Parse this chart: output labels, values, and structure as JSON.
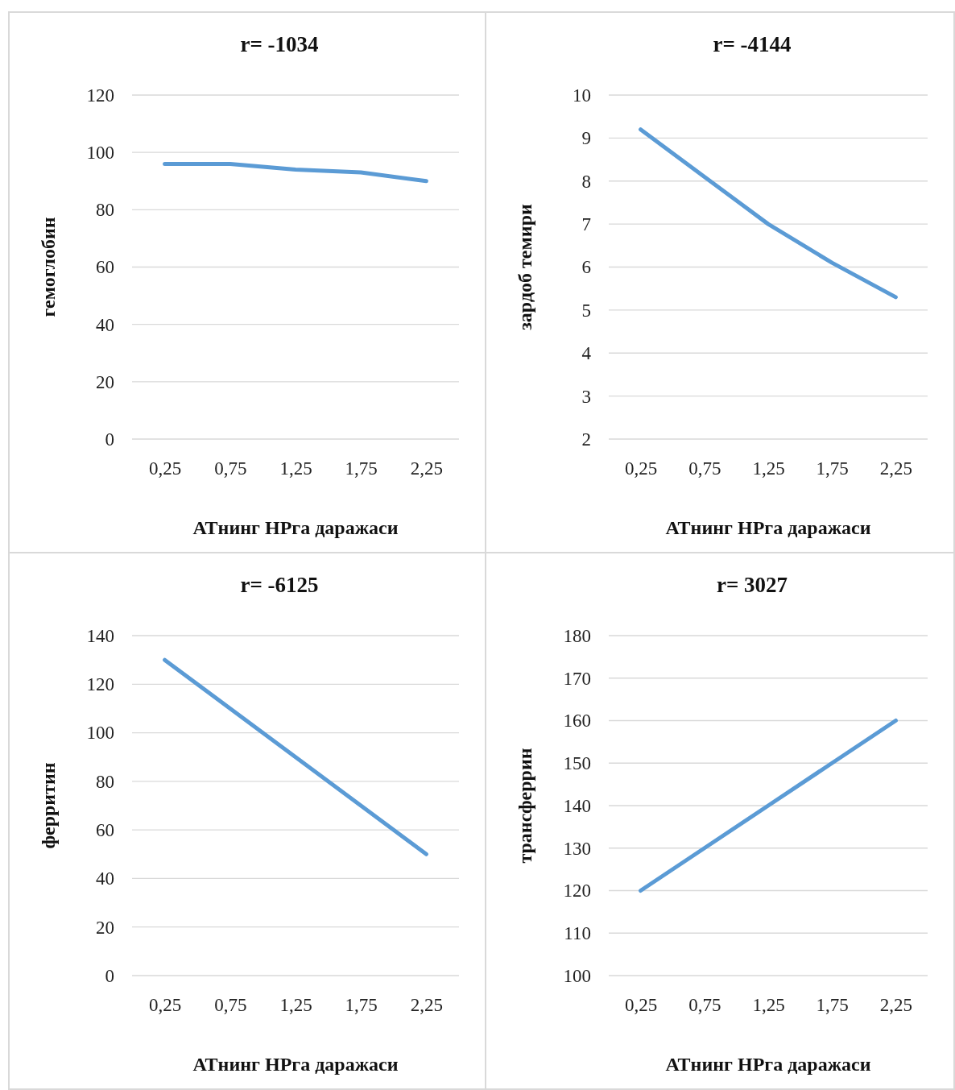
{
  "chart_data": [
    {
      "type": "line",
      "title": "r= -1034",
      "xlabel": "АТнинг НРга даражаси",
      "ylabel": "гемоглобин",
      "categories": [
        "0,25",
        "0,75",
        "1,25",
        "1,75",
        "2,25"
      ],
      "series": [
        {
          "color": "#5b9bd5",
          "values": [
            96,
            96,
            94,
            93,
            90
          ]
        }
      ],
      "ylim": [
        0,
        120
      ],
      "yticks": [
        0,
        20,
        40,
        60,
        80,
        100,
        120
      ],
      "grid": "y",
      "marker": "none"
    },
    {
      "type": "line",
      "title": "r= -4144",
      "xlabel": "АТнинг НРга даражаси",
      "ylabel": "зардоб темири",
      "categories": [
        "0,25",
        "0,75",
        "1,25",
        "1,75",
        "2,25"
      ],
      "series": [
        {
          "color": "#5b9bd5",
          "values": [
            9.2,
            8.1,
            7.0,
            6.1,
            5.3
          ]
        }
      ],
      "ylim": [
        2,
        10
      ],
      "yticks": [
        2,
        3,
        4,
        5,
        6,
        7,
        8,
        9,
        10
      ],
      "grid": "y",
      "marker": "none"
    },
    {
      "type": "line",
      "title": "r= -6125",
      "xlabel": "АТнинг НРга даражаси",
      "ylabel": "ферритин",
      "categories": [
        "0,25",
        "0,75",
        "1,25",
        "1,75",
        "2,25"
      ],
      "series": [
        {
          "color": "#5b9bd5",
          "values": [
            130,
            110,
            90,
            70,
            50
          ]
        }
      ],
      "ylim": [
        0,
        140
      ],
      "yticks": [
        0,
        20,
        40,
        60,
        80,
        100,
        120,
        140
      ],
      "grid": "y",
      "marker": "none"
    },
    {
      "type": "line",
      "title": "r= 3027",
      "xlabel": "АТнинг НРга даражаси",
      "ylabel": "трансферрин",
      "categories": [
        "0,25",
        "0,75",
        "1,25",
        "1,75",
        "2,25"
      ],
      "series": [
        {
          "color": "#5b9bd5",
          "values": [
            120,
            130,
            140,
            150,
            160
          ]
        }
      ],
      "ylim": [
        100,
        180
      ],
      "yticks": [
        100,
        110,
        120,
        130,
        140,
        150,
        160,
        170,
        180
      ],
      "grid": "y",
      "marker": "none"
    }
  ]
}
